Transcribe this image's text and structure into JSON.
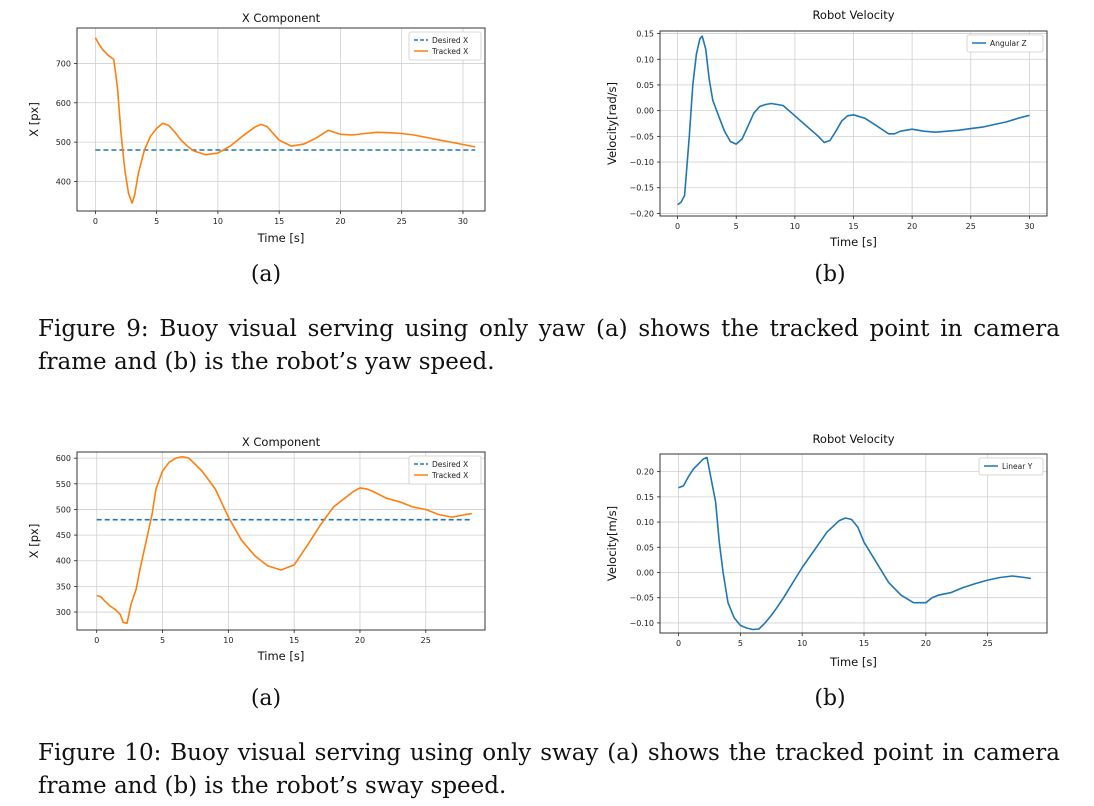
{
  "figure9": {
    "caption": "Figure 9: Buoy visual serving using only yaw (a) shows the tracked point in camera frame and (b) is the robot’s yaw speed.",
    "sub_a": "(a)",
    "sub_b": "(b)"
  },
  "figure10": {
    "caption": "Figure 10: Buoy visual serving using only sway (a) shows the tracked point in camera frame and (b) is the robot’s sway speed.",
    "sub_a": "(a)",
    "sub_b": "(b)"
  },
  "chart_data": [
    {
      "id": "fig9a",
      "type": "line",
      "title": "X Component",
      "xlabel": "Time [s]",
      "ylabel": "X [px]",
      "xlim": [
        -1.5,
        31.8
      ],
      "ylim": [
        325,
        790
      ],
      "xticks": [
        0,
        5,
        10,
        15,
        20,
        25,
        30
      ],
      "yticks": [
        400,
        500,
        600,
        700
      ],
      "ytick_labels": [
        "400",
        "500",
        "600",
        "700"
      ],
      "grid": true,
      "legend": "top-right",
      "series": [
        {
          "name": "Desired X",
          "color": "#1f77b4",
          "style": "dashed",
          "x": [
            0,
            31
          ],
          "y": [
            480,
            480
          ]
        },
        {
          "name": "Tracked X",
          "color": "#ff7f0e",
          "style": "solid",
          "x": [
            0,
            0.3,
            0.6,
            1,
            1.5,
            1.8,
            2.1,
            2.4,
            2.7,
            3.0,
            3.2,
            3.5,
            4,
            4.5,
            5,
            5.5,
            6,
            6.5,
            7,
            7.5,
            8,
            9,
            10,
            11,
            12,
            13,
            13.5,
            14,
            15,
            16,
            17,
            18,
            19,
            20,
            21,
            22,
            23,
            24,
            25,
            26,
            27,
            28,
            29,
            30,
            31
          ],
          "y": [
            765,
            748,
            735,
            722,
            710,
            640,
            520,
            430,
            370,
            345,
            365,
            420,
            480,
            515,
            535,
            548,
            542,
            525,
            505,
            490,
            478,
            468,
            472,
            490,
            515,
            538,
            545,
            540,
            505,
            490,
            495,
            510,
            530,
            520,
            518,
            522,
            525,
            524,
            522,
            518,
            512,
            506,
            500,
            494,
            488
          ]
        }
      ]
    },
    {
      "id": "fig9b",
      "type": "line",
      "title": "Robot Velocity",
      "xlabel": "Time [s]",
      "ylabel": "Velocity[rad/s]",
      "xlim": [
        -1.5,
        31.5
      ],
      "ylim": [
        -0.205,
        0.155
      ],
      "xticks": [
        0,
        5,
        10,
        15,
        20,
        25,
        30
      ],
      "yticks": [
        -0.2,
        -0.15,
        -0.1,
        -0.05,
        0,
        0.05,
        0.1,
        0.15
      ],
      "ytick_labels": [
        "−0.20",
        "−0.15",
        "−0.10",
        "−0.05",
        "0.00",
        "0.05",
        "0.10",
        "0.15"
      ],
      "grid": true,
      "legend": "top-right",
      "series": [
        {
          "name": "Angular Z",
          "color": "#1f77b4",
          "style": "solid",
          "x": [
            0,
            0.3,
            0.6,
            1.0,
            1.3,
            1.6,
            1.9,
            2.1,
            2.4,
            2.7,
            3.0,
            3.5,
            4,
            4.5,
            5,
            5.5,
            6,
            6.5,
            7,
            7.5,
            8,
            9,
            10,
            11,
            12,
            12.5,
            13,
            13.5,
            14,
            14.5,
            15,
            16,
            17,
            18,
            18.5,
            19,
            20,
            21,
            22,
            23,
            24,
            25,
            26,
            27,
            28,
            29,
            30
          ],
          "y": [
            -0.183,
            -0.178,
            -0.165,
            -0.05,
            0.05,
            0.11,
            0.14,
            0.145,
            0.12,
            0.06,
            0.02,
            -0.01,
            -0.04,
            -0.06,
            -0.065,
            -0.055,
            -0.03,
            -0.005,
            0.008,
            0.012,
            0.014,
            0.01,
            -0.01,
            -0.03,
            -0.05,
            -0.062,
            -0.058,
            -0.04,
            -0.02,
            -0.01,
            -0.008,
            -0.015,
            -0.03,
            -0.045,
            -0.045,
            -0.04,
            -0.036,
            -0.04,
            -0.042,
            -0.04,
            -0.038,
            -0.035,
            -0.032,
            -0.027,
            -0.022,
            -0.015,
            -0.009
          ]
        }
      ]
    },
    {
      "id": "fig10a",
      "type": "line",
      "title": "X Component",
      "xlabel": "Time [s]",
      "ylabel": "X [px]",
      "xlim": [
        -1.5,
        29.5
      ],
      "ylim": [
        265,
        612
      ],
      "xticks": [
        0,
        5,
        10,
        15,
        20,
        25
      ],
      "yticks": [
        300,
        350,
        400,
        450,
        500,
        550,
        600
      ],
      "ytick_labels": [
        "300",
        "350",
        "400",
        "450",
        "500",
        "550",
        "600"
      ],
      "grid": true,
      "legend": "top-right",
      "series": [
        {
          "name": "Desired X",
          "color": "#1f77b4",
          "style": "dashed",
          "x": [
            0,
            28.5
          ],
          "y": [
            480,
            480
          ]
        },
        {
          "name": "Tracked X",
          "color": "#ff7f0e",
          "style": "solid",
          "x": [
            0,
            0.3,
            0.6,
            1,
            1.4,
            1.8,
            2.0,
            2.3,
            2.6,
            3.0,
            3.3,
            3.6,
            3.9,
            4.2,
            4.5,
            5,
            5.5,
            6,
            6.5,
            7,
            8,
            9,
            10,
            11,
            12,
            13,
            14,
            15,
            16,
            17,
            18,
            19,
            19.5,
            20,
            20.5,
            21,
            22,
            23,
            24,
            25,
            26,
            27,
            28,
            28.5
          ],
          "y": [
            332,
            330,
            322,
            312,
            305,
            295,
            280,
            278,
            315,
            345,
            385,
            420,
            455,
            490,
            540,
            575,
            592,
            600,
            603,
            600,
            575,
            540,
            485,
            440,
            410,
            390,
            382,
            392,
            430,
            470,
            505,
            525,
            535,
            542,
            540,
            535,
            522,
            515,
            505,
            500,
            490,
            485,
            490,
            492
          ]
        }
      ]
    },
    {
      "id": "fig10b",
      "type": "line",
      "title": "Robot Velocity",
      "xlabel": "Time [s]",
      "ylabel": "Velocity[m/s]",
      "xlim": [
        -1.5,
        29.8
      ],
      "ylim": [
        -0.12,
        0.235
      ],
      "xticks": [
        0,
        5,
        10,
        15,
        20,
        25
      ],
      "yticks": [
        -0.1,
        -0.05,
        0,
        0.05,
        0.1,
        0.15,
        0.2
      ],
      "ytick_labels": [
        "−0.10",
        "−0.05",
        "0.00",
        "0.05",
        "0.10",
        "0.15",
        "0.20"
      ],
      "grid": true,
      "legend": "top-right",
      "series": [
        {
          "name": "Linear Y",
          "color": "#1f77b4",
          "style": "solid",
          "x": [
            0,
            0.4,
            0.8,
            1.2,
            1.6,
            2.0,
            2.3,
            2.6,
            3.0,
            3.3,
            3.6,
            4.0,
            4.5,
            5,
            5.5,
            6,
            6.5,
            7,
            7.5,
            8,
            8.5,
            9,
            9.5,
            10,
            11,
            12,
            13,
            13.5,
            14,
            14.5,
            15,
            16,
            17,
            18,
            19,
            20,
            20.5,
            21,
            22,
            23,
            24,
            25,
            26,
            27,
            28,
            28.5
          ],
          "y": [
            0.168,
            0.172,
            0.19,
            0.205,
            0.215,
            0.225,
            0.228,
            0.19,
            0.14,
            0.06,
            0.0,
            -0.06,
            -0.09,
            -0.105,
            -0.11,
            -0.113,
            -0.112,
            -0.1,
            -0.085,
            -0.068,
            -0.05,
            -0.03,
            -0.01,
            0.01,
            0.045,
            0.08,
            0.103,
            0.108,
            0.105,
            0.09,
            0.06,
            0.02,
            -0.02,
            -0.045,
            -0.06,
            -0.06,
            -0.05,
            -0.045,
            -0.04,
            -0.03,
            -0.022,
            -0.015,
            -0.01,
            -0.007,
            -0.01,
            -0.012
          ]
        }
      ]
    }
  ]
}
